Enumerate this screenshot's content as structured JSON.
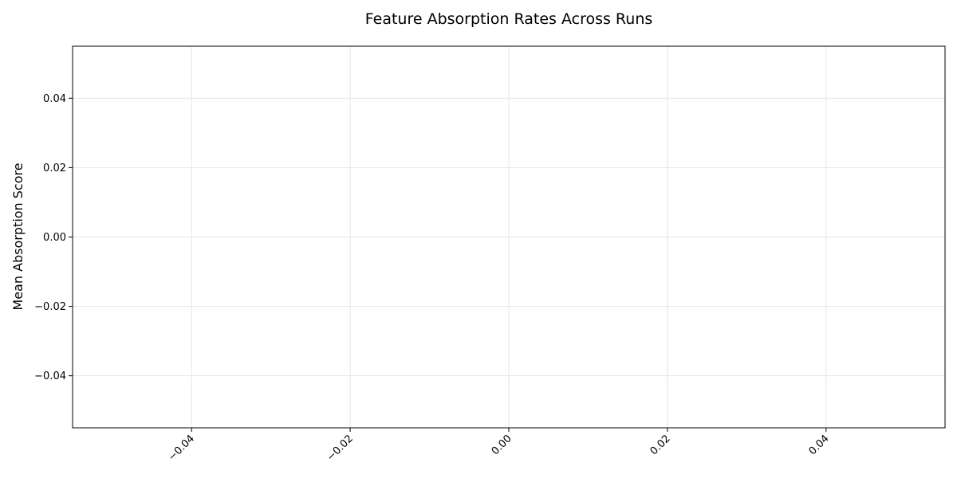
{
  "chart_data": {
    "type": "bar",
    "title": "Feature Absorption Rates Across Runs",
    "xlabel": "",
    "ylabel": "Mean Absorption Score",
    "categories": [],
    "values": [],
    "xlim": [
      -0.055,
      0.055
    ],
    "ylim": [
      -0.055,
      0.055
    ],
    "xticks": [
      -0.04,
      -0.02,
      0.0,
      0.02,
      0.04
    ],
    "xtick_labels": [
      "−0.04",
      "−0.02",
      "0.00",
      "0.02",
      "0.04"
    ],
    "yticks": [
      0.04,
      0.02,
      0.0,
      -0.02,
      -0.04
    ],
    "ytick_labels": [
      "0.04",
      "0.02",
      "0.00",
      "−0.02",
      "−0.04"
    ],
    "grid": true,
    "legend": "none"
  }
}
